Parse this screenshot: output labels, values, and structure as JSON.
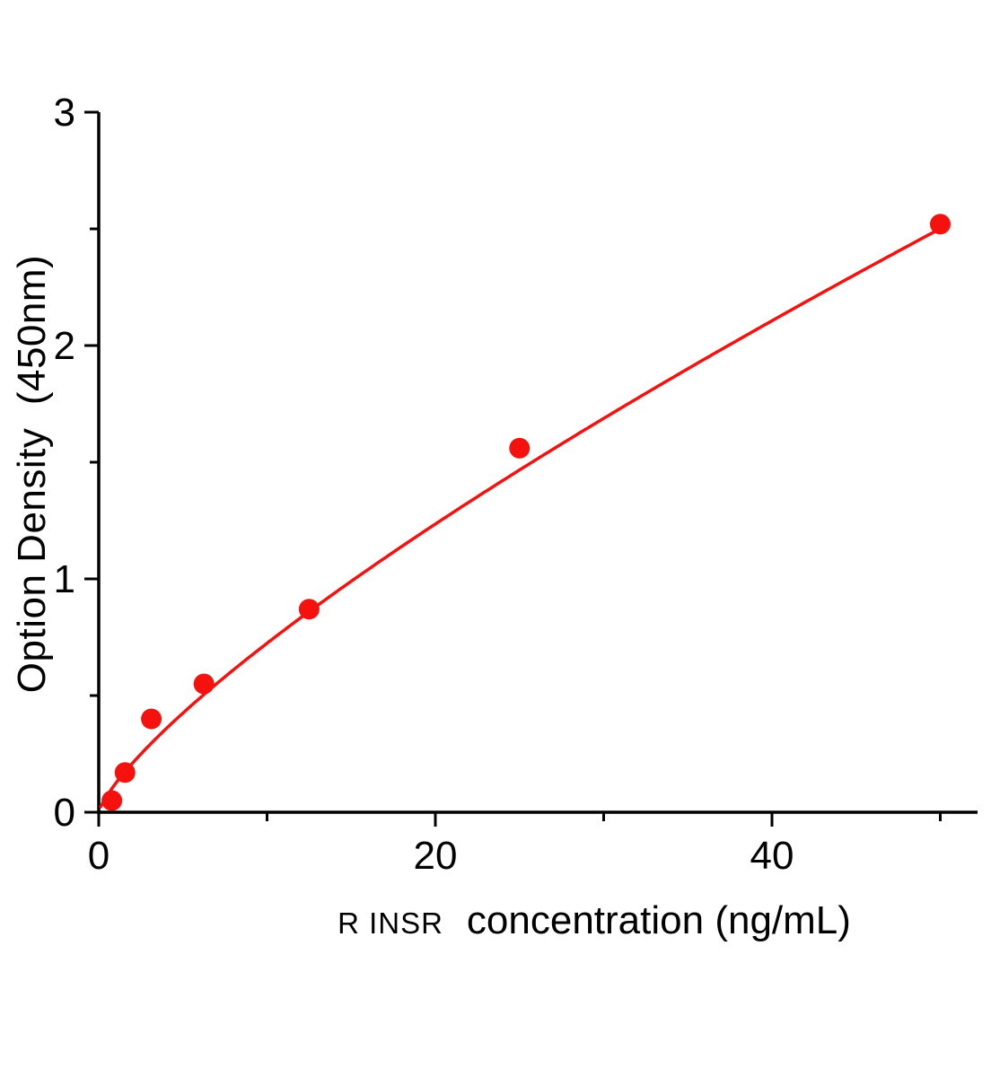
{
  "chart_data": {
    "type": "scatter",
    "title": "",
    "xlabel_prefix": "R INSR",
    "xlabel": "concentration (ng/mL)",
    "ylabel": "Option Density  (450nm)",
    "x": [
      0.78,
      1.56,
      3.125,
      6.25,
      12.5,
      25,
      50
    ],
    "y": [
      0.05,
      0.17,
      0.4,
      0.55,
      0.87,
      1.56,
      2.52
    ],
    "xlim": [
      0,
      52
    ],
    "ylim": [
      0,
      3
    ],
    "x_major_ticks": [
      0,
      20,
      40
    ],
    "x_minor_ticks": [
      10,
      30,
      50
    ],
    "y_major_ticks": [
      0,
      1,
      2,
      3
    ],
    "y_minor_ticks": [
      0.5,
      1.5,
      2.5
    ],
    "fit": {
      "type": "power",
      "a": 0.123,
      "b": 0.77,
      "x_start": 0.12,
      "x_end": 50.2
    },
    "point_color": "#f5120e",
    "line_color": "#f5120e",
    "axis_color": "#000000",
    "grid": false,
    "legend": "none"
  }
}
